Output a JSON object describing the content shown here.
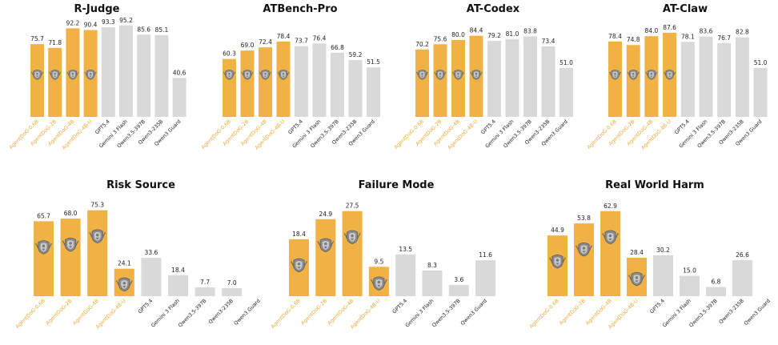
{
  "figure": {
    "colors": {
      "ours": "#f0b245",
      "other": "#d9d9d9",
      "ours_label": "#e8a93a",
      "other_label": "#222222",
      "emblem": "#9a9a9a"
    }
  },
  "chart_data": [
    {
      "type": "bar",
      "title": "R-Judge",
      "categories": [
        "AgentDoG-0.6B",
        "AgentDoG-2B",
        "AgentDoG-4B",
        "AgentDoG-4B-U",
        "GPT5.4",
        "Gemini 3 Flash",
        "Qwen3.5-397B",
        "Qwen3-235B",
        "Qwen3 Guard"
      ],
      "values": [
        75.7,
        71.8,
        92.2,
        90.4,
        93.3,
        95.2,
        85.6,
        85.1,
        40.6
      ],
      "labels": [
        "75.7",
        "71.8",
        "92.2",
        "90.4",
        "93.3",
        "95.2",
        "85.6",
        "85.1",
        "40.6"
      ],
      "highlight": [
        true,
        true,
        true,
        true,
        false,
        false,
        false,
        false,
        false
      ],
      "ylim": [
        0,
        100
      ]
    },
    {
      "type": "bar",
      "title": "ATBench-Pro",
      "categories": [
        "AgentDoG-0.6B",
        "AgentDoG-2B",
        "AgentDoG-4B",
        "AgentDoG-4B-U",
        "GPT5.4",
        "Gemini 3 Flash",
        "Qwen3.5-397B",
        "Qwen3-235B",
        "Qwen3 Guard"
      ],
      "values": [
        60.3,
        69.0,
        72.4,
        78.4,
        73.7,
        76.4,
        66.8,
        59.2,
        51.5
      ],
      "labels": [
        "60.3",
        "69.0",
        "72.4",
        "78.4",
        "73.7",
        "76.4",
        "66.8",
        "59.2",
        "51.5"
      ],
      "highlight": [
        true,
        true,
        true,
        true,
        false,
        false,
        false,
        false,
        false
      ],
      "ylim": [
        0,
        100
      ]
    },
    {
      "type": "bar",
      "title": "AT-Codex",
      "categories": [
        "AgentDoG-0.6B",
        "AgentDoG-2B",
        "AgentDoG-4B",
        "AgentDoG-4B-U",
        "GPT5.4",
        "Gemini 3 Flash",
        "Qwen3.5-397B",
        "Qwen3-235B",
        "Qwen3 Guard"
      ],
      "values": [
        70.2,
        75.6,
        80.0,
        84.4,
        79.2,
        81.0,
        83.8,
        73.4,
        51.0
      ],
      "labels": [
        "70.2",
        "75.6",
        "80.0",
        "84.4",
        "79.2",
        "81.0",
        "83.8",
        "73.4",
        "51.0"
      ],
      "highlight": [
        true,
        true,
        true,
        true,
        false,
        false,
        false,
        false,
        false
      ],
      "ylim": [
        0,
        100
      ]
    },
    {
      "type": "bar",
      "title": "AT-Claw",
      "categories": [
        "AgentDoG-0.6B",
        "AgentDoG-2B",
        "AgentDoG-4B",
        "AgentDoG-4B-U",
        "GPT5.4",
        "Gemini 3 Flash",
        "Qwen3.5-397B",
        "Qwen3-235B",
        "Qwen3 Guard"
      ],
      "values": [
        78.4,
        74.8,
        84.0,
        87.6,
        78.1,
        83.6,
        76.7,
        82.8,
        51.0
      ],
      "labels": [
        "78.4",
        "74.8",
        "84.0",
        "87.6",
        "78.1",
        "83.6",
        "76.7",
        "82.8",
        "51.0"
      ],
      "highlight": [
        true,
        true,
        true,
        true,
        false,
        false,
        false,
        false,
        false
      ],
      "ylim": [
        0,
        100
      ]
    },
    {
      "type": "bar",
      "title": "Risk Source",
      "categories": [
        "AgentDoG-0.6B",
        "AgentDoG-2B",
        "AgentDoG-4B",
        "AgentDoG-4B-U",
        "GPT5.4",
        "Gemini 3 Flash",
        "Qwen3.5-397B",
        "Qwen3-235B",
        "Qwen3 Guard"
      ],
      "values": [
        65.7,
        68.0,
        75.3,
        24.1,
        33.6,
        18.4,
        7.7,
        7.0,
        null
      ],
      "labels": [
        "65.7",
        "68.0",
        "75.3",
        "24.1",
        "33.6",
        "18.4",
        "7.7",
        "7.0",
        ""
      ],
      "highlight": [
        true,
        true,
        true,
        true,
        false,
        false,
        false,
        false,
        false
      ],
      "ylim": [
        0,
        80
      ]
    },
    {
      "type": "bar",
      "title": "Failure Mode",
      "categories": [
        "AgentDoG-0.6B",
        "AgentDoG-2B",
        "AgentDoG-4B",
        "AgentDoG-4B-U",
        "GPT5.4",
        "Gemini 3 Flash",
        "Qwen3.5-397B",
        "Qwen3 Guard"
      ],
      "values": [
        18.4,
        24.9,
        27.5,
        9.5,
        13.5,
        8.3,
        3.6,
        11.6
      ],
      "labels": [
        "18.4",
        "24.9",
        "27.5",
        "9.5",
        "13.5",
        "8.3",
        "3.6",
        "11.6"
      ],
      "highlight": [
        true,
        true,
        true,
        true,
        false,
        false,
        false,
        false
      ],
      "ylim": [
        0,
        29.5
      ]
    },
    {
      "type": "bar",
      "title": "Real World Harm",
      "categories": [
        "AgentDoG-0.6B",
        "AgentDoG-2B",
        "AgentDoG-4B",
        "AgentDoG-4B-U",
        "GPT5.4",
        "Gemini 3 Flash",
        "Qwen3.5-397B",
        "Qwen3-235B",
        "Qwen3 Guard"
      ],
      "values": [
        44.9,
        53.8,
        62.9,
        28.4,
        30.2,
        15.0,
        6.8,
        26.6,
        null
      ],
      "labels": [
        "44.9",
        "53.8",
        "62.9",
        "28.4",
        "30.2",
        "15.0",
        "6.8",
        "26.6",
        ""
      ],
      "highlight": [
        true,
        true,
        true,
        true,
        false,
        false,
        false,
        false,
        false
      ],
      "ylim": [
        0,
        67.5
      ]
    }
  ]
}
